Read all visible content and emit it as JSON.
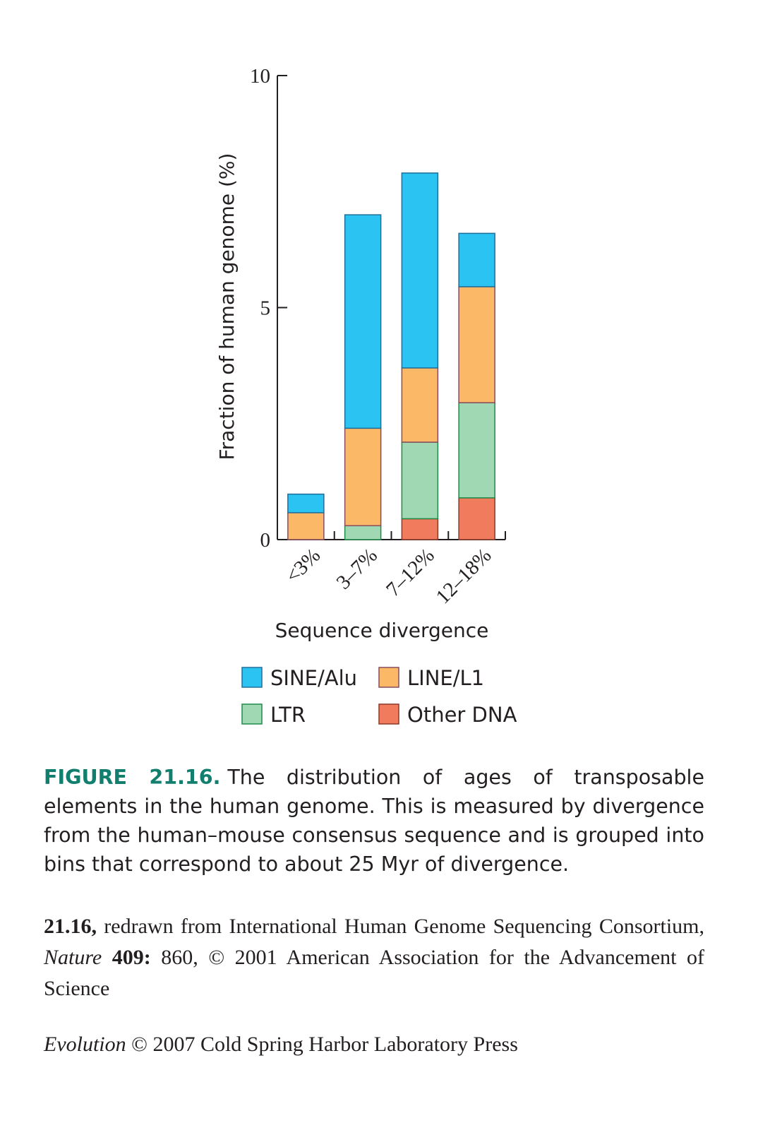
{
  "chart_data": {
    "type": "bar",
    "stacked": true,
    "ylabel": "Fraction of human genome (%)",
    "xlabel": "Sequence divergence",
    "ylim": [
      0,
      10
    ],
    "yticks": [
      "0",
      "5",
      "10"
    ],
    "categories": [
      "<3%",
      "3–7%",
      "7–12%",
      "12–18%"
    ],
    "series": [
      {
        "name": "Other DNA",
        "color": "#f07b5d",
        "values": [
          0,
          0,
          0.45,
          0.9
        ]
      },
      {
        "name": "LTR",
        "color": "#a0d8b4",
        "values": [
          0,
          0.3,
          1.65,
          2.05
        ]
      },
      {
        "name": "LINE/L1",
        "color": "#fbb968",
        "values": [
          0.58,
          2.1,
          1.6,
          2.5
        ]
      },
      {
        "name": "SINE/Alu",
        "color": "#2bc3f2",
        "values": [
          0.4,
          4.6,
          4.2,
          1.15
        ]
      }
    ],
    "legend": {
      "placement": "bottom",
      "order": [
        "SINE/Alu",
        "LINE/L1",
        "LTR",
        "Other DNA"
      ]
    }
  },
  "caption": {
    "label": "FIGURE 21.16.",
    "text": "The distribution of ages of transposable elements in the human genome. This is measured by divergence from the human–mouse consensus sequence and is grouped into bins that correspond to about 25 Myr of divergence."
  },
  "credit": {
    "fig_num": "21.16,",
    "text1": "redrawn from International Human Genome Sequencing Consortium,",
    "journal": "Nature",
    "volume": "409:",
    "text2": "860, © 2001 American Association for the Advancement of Science"
  },
  "footer": {
    "book": "Evolution",
    "text": "© 2007 Cold Spring Harbor Laboratory Press"
  }
}
